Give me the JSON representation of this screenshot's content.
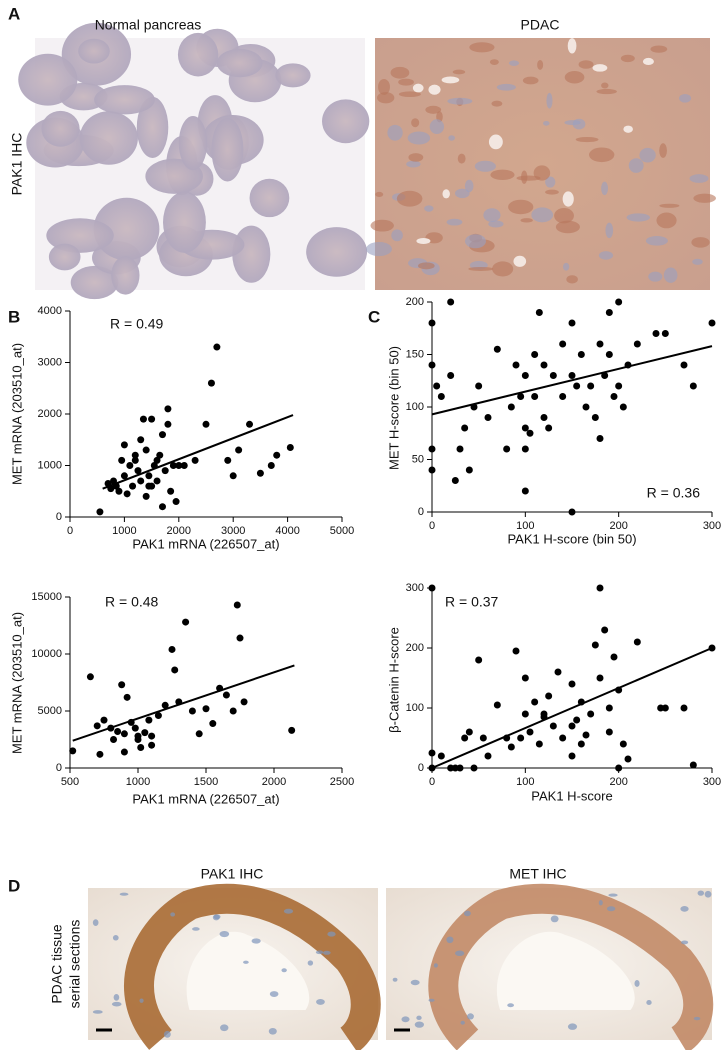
{
  "panel_labels": [
    "A",
    "B",
    "C",
    "D"
  ],
  "panel_a": {
    "row_label": "PAK1 IHC",
    "titles": [
      "Normal pancreas",
      "PDAC"
    ]
  },
  "panel_d": {
    "row_label": [
      "PDAC tissue",
      "serial sections"
    ],
    "titles": [
      "PAK1 IHC",
      "MET IHC"
    ]
  },
  "chart_data": [
    {
      "type": "scatter",
      "annotation": "R = 0.49",
      "x_label": "PAK1 mRNA (226507_at)",
      "y_label": "MET mRNA (203510_at)",
      "xlim": [
        0,
        5000
      ],
      "xticks": [
        0,
        1000,
        2000,
        3000,
        4000,
        5000
      ],
      "ylim": [
        0,
        4000
      ],
      "yticks": [
        0,
        1000,
        2000,
        3000,
        4000
      ],
      "color": "#000000",
      "x": [
        550,
        700,
        750,
        800,
        850,
        900,
        950,
        1000,
        1050,
        1100,
        1150,
        1200,
        1250,
        1300,
        1350,
        1400,
        1450,
        1500,
        1550,
        1600,
        1650,
        1700,
        1750,
        1800,
        1850,
        1900,
        1950,
        2000,
        1000,
        1200,
        1400,
        1600,
        1800,
        1300,
        1500,
        2100,
        2300,
        2500,
        2600,
        2700,
        2900,
        3000,
        3100,
        3300,
        3500,
        3700,
        3800,
        4050,
        1450,
        1700
      ],
      "values": [
        100,
        650,
        550,
        700,
        600,
        500,
        1100,
        800,
        450,
        1000,
        600,
        1100,
        900,
        1500,
        1900,
        1300,
        800,
        1900,
        1000,
        700,
        1200,
        1600,
        900,
        2100,
        500,
        1000,
        300,
        1000,
        1400,
        1200,
        400,
        1100,
        1800,
        700,
        600,
        1000,
        1100,
        1800,
        2600,
        3300,
        1100,
        800,
        1300,
        1800,
        850,
        1000,
        1200,
        1350,
        600,
        200
      ],
      "fit": {
        "x": [
          600,
          4100
        ],
        "y": [
          550,
          1980
        ]
      }
    },
    {
      "type": "scatter",
      "annotation": "R = 0.48",
      "x_label": "PAK1 mRNA (226507_at)",
      "y_label": "MET mRNA (203510_at)",
      "xlim": [
        500,
        2500
      ],
      "xticks": [
        500,
        1000,
        1500,
        2000,
        2500
      ],
      "ylim": [
        0,
        15000
      ],
      "yticks": [
        0,
        5000,
        10000,
        15000
      ],
      "color": "#000000",
      "x": [
        520,
        650,
        700,
        720,
        750,
        800,
        820,
        850,
        880,
        900,
        920,
        950,
        980,
        1000,
        1020,
        1050,
        1080,
        1100,
        1150,
        1200,
        1250,
        1270,
        1300,
        1350,
        1400,
        1450,
        1500,
        1550,
        1600,
        1650,
        1700,
        1730,
        1750,
        1780,
        2130,
        900,
        1000,
        1100
      ],
      "values": [
        1500,
        8000,
        3700,
        1200,
        4200,
        3500,
        2500,
        3200,
        7300,
        3000,
        6200,
        4000,
        3500,
        2800,
        1800,
        3100,
        4200,
        2800,
        4600,
        5500,
        10400,
        8600,
        5800,
        12800,
        5000,
        3000,
        5200,
        3900,
        7000,
        6400,
        5000,
        14300,
        11400,
        5800,
        3300,
        1400,
        2500,
        2000
      ],
      "fit": {
        "x": [
          520,
          2150
        ],
        "y": [
          2400,
          9000
        ]
      }
    },
    {
      "type": "scatter",
      "annotation": "R = 0.36",
      "x_label": "PAK1 H-score (bin 50)",
      "y_label": "MET H-score (bin 50)",
      "xlim": [
        0,
        300
      ],
      "xticks": [
        0,
        100,
        200,
        300
      ],
      "ylim": [
        0,
        200
      ],
      "yticks": [
        0,
        50,
        100,
        150,
        200
      ],
      "color": "#000000",
      "x": [
        0,
        0,
        0,
        0,
        5,
        10,
        20,
        20,
        25,
        30,
        35,
        40,
        45,
        50,
        60,
        70,
        80,
        85,
        90,
        95,
        100,
        100,
        100,
        105,
        110,
        110,
        115,
        120,
        120,
        125,
        130,
        140,
        140,
        150,
        150,
        155,
        160,
        165,
        170,
        175,
        180,
        180,
        185,
        190,
        190,
        195,
        200,
        200,
        205,
        210,
        220,
        240,
        250,
        270,
        280,
        300,
        150,
        100
      ],
      "values": [
        180,
        140,
        60,
        40,
        120,
        110,
        200,
        130,
        30,
        60,
        80,
        40,
        100,
        120,
        90,
        155,
        60,
        100,
        140,
        110,
        20,
        60,
        130,
        75,
        110,
        150,
        190,
        140,
        90,
        80,
        130,
        110,
        160,
        0,
        180,
        120,
        150,
        100,
        120,
        90,
        70,
        160,
        130,
        190,
        150,
        110,
        200,
        120,
        100,
        140,
        160,
        170,
        170,
        140,
        120,
        180,
        130,
        80
      ],
      "fit": {
        "x": [
          0,
          300
        ],
        "y": [
          93,
          158
        ]
      }
    },
    {
      "type": "scatter",
      "annotation": "R = 0.37",
      "x_label": "PAK1 H-score",
      "y_label": "β-Catenin H-score",
      "xlim": [
        0,
        300
      ],
      "xticks": [
        0,
        100,
        200,
        300
      ],
      "ylim": [
        0,
        300
      ],
      "yticks": [
        0,
        100,
        200,
        300
      ],
      "color": "#000000",
      "x": [
        0,
        0,
        0,
        10,
        20,
        25,
        30,
        35,
        40,
        45,
        50,
        55,
        60,
        70,
        80,
        85,
        90,
        95,
        100,
        100,
        105,
        110,
        115,
        120,
        125,
        130,
        135,
        140,
        150,
        150,
        155,
        160,
        160,
        165,
        170,
        175,
        180,
        180,
        185,
        190,
        190,
        195,
        200,
        200,
        205,
        210,
        220,
        245,
        250,
        270,
        280,
        300,
        150,
        120
      ],
      "values": [
        300,
        25,
        0,
        20,
        0,
        0,
        0,
        50,
        60,
        0,
        180,
        50,
        20,
        105,
        50,
        35,
        195,
        50,
        90,
        150,
        60,
        110,
        40,
        85,
        120,
        70,
        160,
        50,
        20,
        140,
        80,
        110,
        40,
        55,
        90,
        205,
        300,
        150,
        230,
        60,
        100,
        185,
        130,
        0,
        40,
        15,
        210,
        100,
        100,
        100,
        5,
        200,
        70,
        90
      ],
      "fit": {
        "x": [
          0,
          300
        ],
        "y": [
          0,
          200
        ]
      }
    }
  ]
}
